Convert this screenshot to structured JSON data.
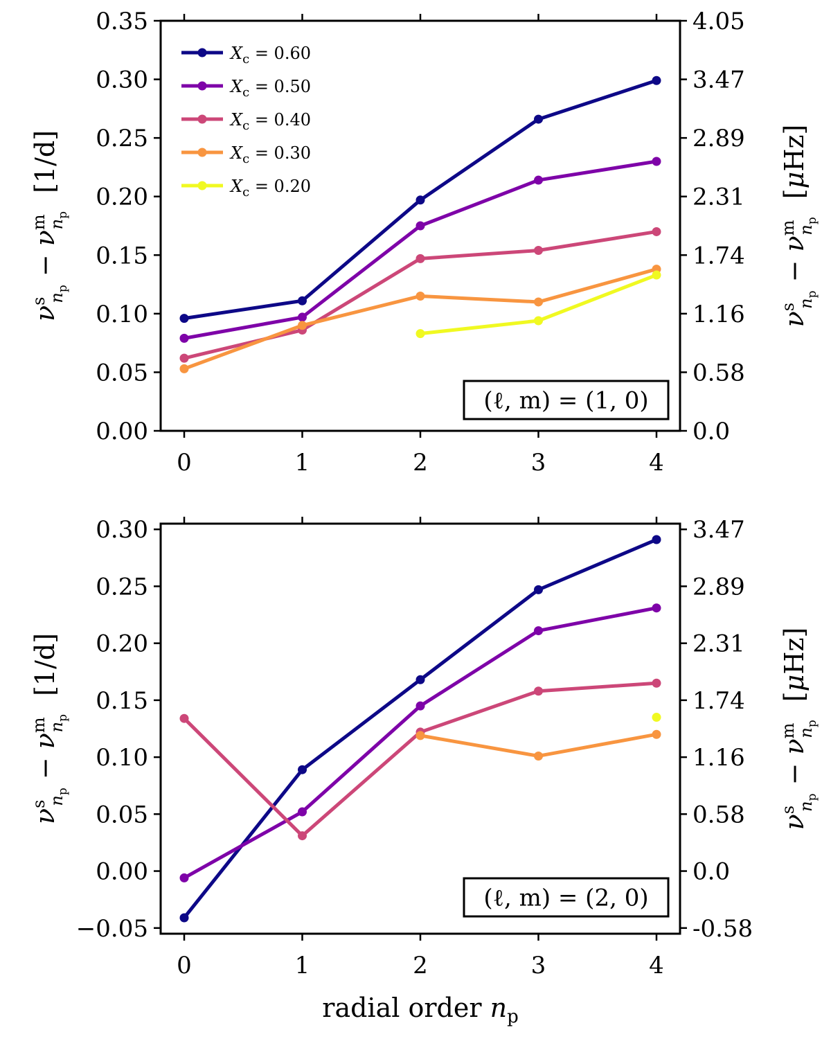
{
  "chart_data": [
    {
      "type": "line",
      "panel_label": "(ℓ, m) = (1, 0)",
      "x": [
        0,
        1,
        2,
        3,
        4
      ],
      "xticks": [
        "0",
        "1",
        "2",
        "3",
        "4"
      ],
      "xlabel": "",
      "ylabel_left": "ν^s_np − ν^m_np [1/d]",
      "ylabel_right": "ν^s_np − ν^m_np [μHz]",
      "ylim": [
        0,
        0.35
      ],
      "yticks_left": [
        "0.00",
        "0.05",
        "0.10",
        "0.15",
        "0.20",
        "0.25",
        "0.30",
        "0.35"
      ],
      "yticks_right": [
        "0.0",
        "0.58",
        "1.16",
        "1.74",
        "2.31",
        "2.89",
        "3.47",
        "4.05"
      ],
      "legend_position": "top-left",
      "series": [
        {
          "name": "Xc = 0.60",
          "color": "#0d0887",
          "values": [
            0.096,
            0.111,
            0.197,
            0.266,
            0.299
          ]
        },
        {
          "name": "Xc = 0.50",
          "color": "#7e03a8",
          "values": [
            0.079,
            0.097,
            0.175,
            0.214,
            0.23
          ]
        },
        {
          "name": "Xc = 0.40",
          "color": "#cc4778",
          "values": [
            0.062,
            0.086,
            0.147,
            0.154,
            0.17
          ]
        },
        {
          "name": "Xc = 0.30",
          "color": "#f89540",
          "values": [
            0.053,
            0.09,
            0.115,
            0.11,
            0.138
          ]
        },
        {
          "name": "Xc = 0.20",
          "color": "#f0f921",
          "values": [
            null,
            null,
            0.083,
            0.094,
            0.133
          ]
        }
      ]
    },
    {
      "type": "line",
      "panel_label": "(ℓ, m) = (2, 0)",
      "x": [
        0,
        1,
        2,
        3,
        4
      ],
      "xticks": [
        "0",
        "1",
        "2",
        "3",
        "4"
      ],
      "xlabel": "radial order n_p",
      "ylabel_left": "ν^s_np − ν^m_np [1/d]",
      "ylabel_right": "ν^s_np − ν^m_np [μHz]",
      "ylim": [
        -0.055,
        0.305
      ],
      "yticks_left": [
        "−0.05",
        "0.00",
        "0.05",
        "0.10",
        "0.15",
        "0.20",
        "0.25",
        "0.30"
      ],
      "yticks_right": [
        "-0.58",
        "0.0",
        "0.58",
        "1.16",
        "1.74",
        "2.31",
        "2.89",
        "3.47"
      ],
      "series": [
        {
          "name": "Xc = 0.60",
          "color": "#0d0887",
          "values": [
            -0.041,
            0.089,
            0.168,
            0.247,
            0.291
          ]
        },
        {
          "name": "Xc = 0.50",
          "color": "#7e03a8",
          "values": [
            -0.006,
            0.052,
            0.145,
            0.211,
            0.231
          ]
        },
        {
          "name": "Xc = 0.40",
          "color": "#cc4778",
          "values": [
            0.134,
            0.031,
            0.122,
            0.158,
            0.165
          ]
        },
        {
          "name": "Xc = 0.30",
          "color": "#f89540",
          "values": [
            null,
            null,
            0.119,
            0.101,
            0.12
          ]
        },
        {
          "name": "Xc = 0.20",
          "color": "#f0f921",
          "values": [
            null,
            null,
            null,
            null,
            0.135
          ]
        }
      ]
    }
  ]
}
